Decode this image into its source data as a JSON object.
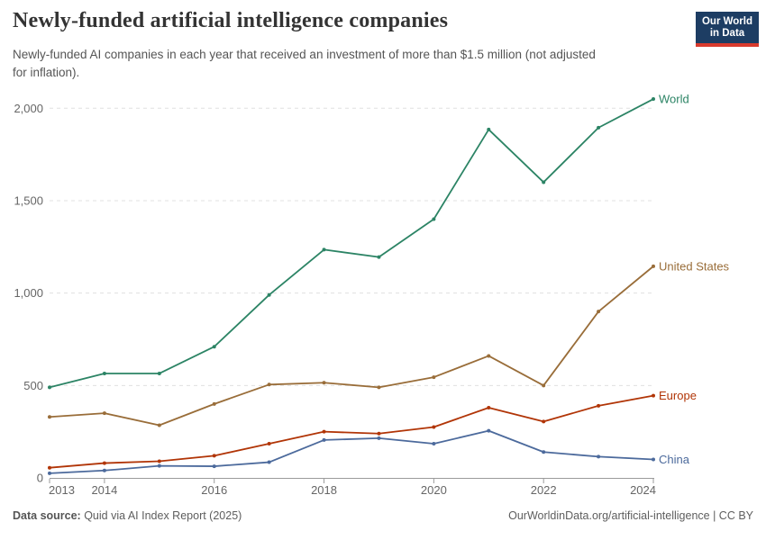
{
  "header": {
    "title": "Newly-funded artificial intelligence companies",
    "subtitle_line1": "Newly-funded AI companies in each year that received an investment of more than $1.5 million (not adjusted",
    "subtitle_line2": "for inflation)."
  },
  "logo": {
    "line1": "Our World",
    "line2": "in Data",
    "bg_color": "#1d3d63",
    "accent_color": "#d93a2d"
  },
  "chart_data": {
    "type": "line",
    "title": "Newly-funded artificial intelligence companies",
    "x": [
      2013,
      2014,
      2015,
      2016,
      2017,
      2018,
      2019,
      2020,
      2021,
      2022,
      2023,
      2024
    ],
    "x_tick_years": [
      2013,
      2014,
      2016,
      2018,
      2020,
      2022,
      2024
    ],
    "x_tick_labels": [
      "2013",
      "2014",
      "2016",
      "2018",
      "2020",
      "2022",
      "2024"
    ],
    "y_ticks": [
      0,
      500,
      1000,
      1500,
      2000
    ],
    "y_tick_labels": [
      "0",
      "500",
      "1,000",
      "1,500",
      "2,000"
    ],
    "xlim": [
      2013,
      2024
    ],
    "ylim": [
      0,
      2100
    ],
    "grid": true,
    "legend_position": "right-end-labels",
    "axis_color": "#9a9a9a",
    "grid_color": "#e0e0e0",
    "tick_label_color": "#666666",
    "series": [
      {
        "name": "World",
        "color": "#2C8465",
        "values": [
          490,
          565,
          565,
          710,
          990,
          1235,
          1195,
          1400,
          1885,
          1600,
          1895,
          2050
        ]
      },
      {
        "name": "United States",
        "color": "#996D39",
        "values": [
          330,
          350,
          285,
          400,
          505,
          515,
          490,
          545,
          660,
          500,
          900,
          1145
        ]
      },
      {
        "name": "Europe",
        "color": "#B13507",
        "values": [
          55,
          80,
          90,
          120,
          185,
          250,
          240,
          275,
          380,
          305,
          390,
          445
        ]
      },
      {
        "name": "China",
        "color": "#4C6A9C",
        "values": [
          25,
          40,
          65,
          63,
          85,
          205,
          215,
          185,
          255,
          140,
          115,
          100
        ]
      }
    ]
  },
  "footer": {
    "source_label": "Data source:",
    "source_text": " Quid via AI Index Report (2025)",
    "attribution": "OurWorldinData.org/artificial-intelligence | CC BY"
  }
}
